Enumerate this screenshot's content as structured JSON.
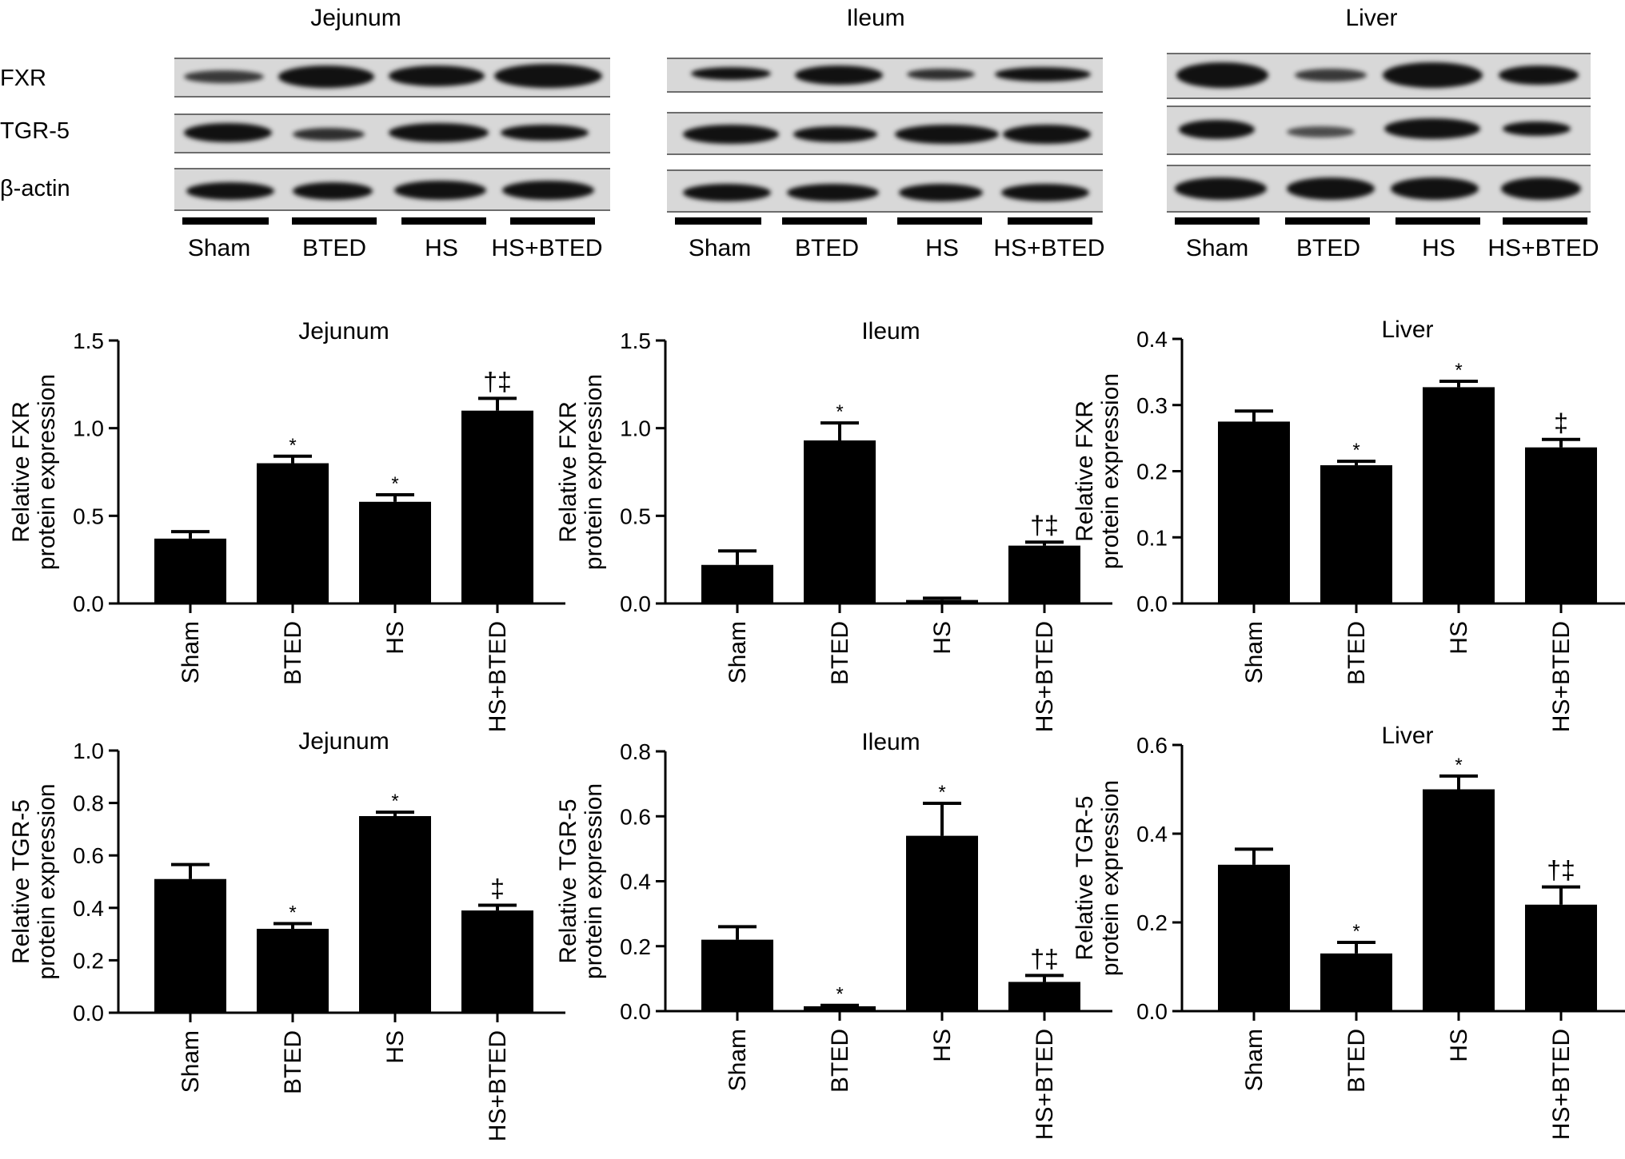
{
  "blots": [
    {
      "title": "Jejunum",
      "rows": [
        "FXR",
        "TGR-5",
        "β-actin"
      ],
      "lanes": [
        "Sham",
        "BTED",
        "HS",
        "HS+BTED"
      ]
    },
    {
      "title": "Ileum",
      "rows": [],
      "lanes": [
        "Sham",
        "BTED",
        "HS",
        "HS+BTED"
      ]
    },
    {
      "title": "Liver",
      "rows": [],
      "lanes": [
        "Sham",
        "BTED",
        "HS",
        "HS+BTED"
      ]
    }
  ],
  "chart_data": [
    {
      "type": "bar",
      "title": "Jejunum",
      "ylabel": [
        "Relative FXR",
        "protein expression"
      ],
      "categories": [
        "Sham",
        "BTED",
        "HS",
        "HS+BTED"
      ],
      "values": [
        0.37,
        0.8,
        0.58,
        1.1
      ],
      "errors": [
        0.04,
        0.04,
        0.04,
        0.07
      ],
      "annotations": [
        "",
        "*",
        "*",
        "†‡"
      ],
      "ylim": [
        0,
        1.5
      ],
      "yticks": [
        "0.0",
        "0.5",
        "1.0",
        "1.5"
      ]
    },
    {
      "type": "bar",
      "title": "Ileum",
      "ylabel": [
        "Relative FXR",
        "protein expression"
      ],
      "categories": [
        "Sham",
        "BTED",
        "HS",
        "HS+BTED"
      ],
      "values": [
        0.22,
        0.93,
        0.02,
        0.33
      ],
      "errors": [
        0.08,
        0.1,
        0.01,
        0.02
      ],
      "annotations": [
        "",
        "*",
        "",
        "†‡"
      ],
      "ylim": [
        0,
        1.5
      ],
      "yticks": [
        "0.0",
        "0.5",
        "1.0",
        "1.5"
      ]
    },
    {
      "type": "bar",
      "title": "Liver",
      "ylabel": [
        "Relative FXR",
        "protein expression"
      ],
      "categories": [
        "Sham",
        "BTED",
        "HS",
        "HS+BTED"
      ],
      "values": [
        0.275,
        0.209,
        0.327,
        0.236
      ],
      "errors": [
        0.016,
        0.006,
        0.009,
        0.012
      ],
      "annotations": [
        "",
        "*",
        "*",
        "‡"
      ],
      "ylim": [
        0,
        0.4
      ],
      "yticks": [
        "0.0",
        "0.1",
        "0.2",
        "0.3",
        "0.4"
      ]
    },
    {
      "type": "bar",
      "title": "Jejunum",
      "ylabel": [
        "Relative TGR-5",
        "protein expression"
      ],
      "categories": [
        "Sham",
        "BTED",
        "HS",
        "HS+BTED"
      ],
      "values": [
        0.51,
        0.32,
        0.75,
        0.39
      ],
      "errors": [
        0.055,
        0.02,
        0.015,
        0.02
      ],
      "annotations": [
        "",
        "*",
        "*",
        "‡"
      ],
      "ylim": [
        0,
        1.0
      ],
      "yticks": [
        "0.0",
        "0.2",
        "0.4",
        "0.6",
        "0.8",
        "1.0"
      ]
    },
    {
      "type": "bar",
      "title": "Ileum",
      "ylabel": [
        "Relative TGR-5",
        "protein expression"
      ],
      "categories": [
        "Sham",
        "BTED",
        "HS",
        "HS+BTED"
      ],
      "values": [
        0.22,
        0.015,
        0.54,
        0.09
      ],
      "errors": [
        0.04,
        0.003,
        0.1,
        0.02
      ],
      "annotations": [
        "",
        "*",
        "*",
        "†‡"
      ],
      "ylim": [
        0,
        0.8
      ],
      "yticks": [
        "0.0",
        "0.2",
        "0.4",
        "0.6",
        "0.8"
      ]
    },
    {
      "type": "bar",
      "title": "Liver",
      "ylabel": [
        "Relative TGR-5",
        "protein expression"
      ],
      "categories": [
        "Sham",
        "BTED",
        "HS",
        "HS+BTED"
      ],
      "values": [
        0.33,
        0.13,
        0.5,
        0.24
      ],
      "errors": [
        0.035,
        0.025,
        0.03,
        0.04
      ],
      "annotations": [
        "",
        "*",
        "*",
        "†‡"
      ],
      "ylim": [
        0,
        0.6
      ],
      "yticks": [
        "0.0",
        "0.2",
        "0.4",
        "0.6"
      ]
    }
  ]
}
